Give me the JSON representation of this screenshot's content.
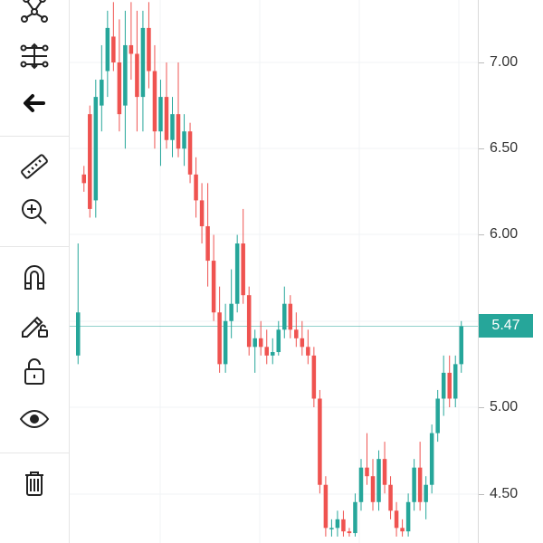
{
  "toolbar": {
    "tools": [
      {
        "id": "pattern",
        "icon": "pattern-icon"
      },
      {
        "id": "measure-settings",
        "icon": "sliders-icon"
      },
      {
        "id": "back",
        "icon": "arrow-left-icon"
      },
      {
        "id": "ruler",
        "icon": "ruler-icon"
      },
      {
        "id": "zoom",
        "icon": "zoom-in-icon"
      },
      {
        "id": "magnet",
        "icon": "magnet-icon"
      },
      {
        "id": "lock-drawing",
        "icon": "pencil-lock-icon"
      },
      {
        "id": "unlock",
        "icon": "unlock-icon"
      },
      {
        "id": "eye",
        "icon": "eye-icon"
      },
      {
        "id": "trash",
        "icon": "trash-icon"
      }
    ]
  },
  "price_axis": {
    "ticks": [
      "7.00",
      "6.50",
      "6.00",
      "5.00",
      "4.50"
    ],
    "current_price": "5.47",
    "current_color": "#26a69a"
  },
  "colors": {
    "up": "#26a69a",
    "down": "#ef5350",
    "grid": "#f0f3f6"
  },
  "chart_data": {
    "type": "candlestick",
    "ylim": [
      4.25,
      7.35
    ],
    "yticks": [
      7.0,
      6.5,
      6.0,
      5.0,
      4.5
    ],
    "last_price": 5.47,
    "candles": [
      [
        5.3,
        5.95,
        5.25,
        5.55
      ],
      [
        6.35,
        6.4,
        6.25,
        6.3
      ],
      [
        6.7,
        6.75,
        6.1,
        6.15
      ],
      [
        6.2,
        6.9,
        6.1,
        6.8
      ],
      [
        6.75,
        7.1,
        6.6,
        6.9
      ],
      [
        6.95,
        7.3,
        6.8,
        7.2
      ],
      [
        7.15,
        7.35,
        6.95,
        7.0
      ],
      [
        7.0,
        7.25,
        6.6,
        6.7
      ],
      [
        6.75,
        7.3,
        6.5,
        7.1
      ],
      [
        7.1,
        7.35,
        6.9,
        7.05
      ],
      [
        7.05,
        7.3,
        6.6,
        6.8
      ],
      [
        6.8,
        7.3,
        6.6,
        7.2
      ],
      [
        7.2,
        7.35,
        6.85,
        6.95
      ],
      [
        6.95,
        7.1,
        6.5,
        6.6
      ],
      [
        6.6,
        6.9,
        6.4,
        6.8
      ],
      [
        6.8,
        7.0,
        6.5,
        6.55
      ],
      [
        6.55,
        6.8,
        6.45,
        6.7
      ],
      [
        6.7,
        7.0,
        6.45,
        6.5
      ],
      [
        6.5,
        6.7,
        6.4,
        6.6
      ],
      [
        6.6,
        6.65,
        6.3,
        6.35
      ],
      [
        6.35,
        6.45,
        6.1,
        6.2
      ],
      [
        6.2,
        6.3,
        5.95,
        6.05
      ],
      [
        6.05,
        6.3,
        5.7,
        5.85
      ],
      [
        5.85,
        6.0,
        5.5,
        5.55
      ],
      [
        5.55,
        5.7,
        5.2,
        5.25
      ],
      [
        5.25,
        5.6,
        5.2,
        5.5
      ],
      [
        5.5,
        5.8,
        5.4,
        5.6
      ],
      [
        5.6,
        6.0,
        5.55,
        5.95
      ],
      [
        5.95,
        6.15,
        5.6,
        5.65
      ],
      [
        5.65,
        5.7,
        5.3,
        5.35
      ],
      [
        5.35,
        5.45,
        5.2,
        5.4
      ],
      [
        5.4,
        5.5,
        5.3,
        5.35
      ],
      [
        5.35,
        5.45,
        5.25,
        5.3
      ],
      [
        5.3,
        5.4,
        5.25,
        5.32
      ],
      [
        5.32,
        5.5,
        5.3,
        5.45
      ],
      [
        5.45,
        5.7,
        5.4,
        5.6
      ],
      [
        5.6,
        5.65,
        5.4,
        5.45
      ],
      [
        5.45,
        5.55,
        5.35,
        5.4
      ],
      [
        5.4,
        5.5,
        5.3,
        5.35
      ],
      [
        5.35,
        5.45,
        5.25,
        5.3
      ],
      [
        5.3,
        5.35,
        5.0,
        5.05
      ],
      [
        5.05,
        5.1,
        4.5,
        4.55
      ],
      [
        4.55,
        4.6,
        4.25,
        4.3
      ],
      [
        4.3,
        4.35,
        4.25,
        4.3
      ],
      [
        4.3,
        4.4,
        4.25,
        4.35
      ],
      [
        4.35,
        4.4,
        4.25,
        4.28
      ],
      [
        4.28,
        4.3,
        4.25,
        4.27
      ],
      [
        4.27,
        4.5,
        4.25,
        4.45
      ],
      [
        4.45,
        4.7,
        4.4,
        4.65
      ],
      [
        4.65,
        4.85,
        4.55,
        4.6
      ],
      [
        4.6,
        4.7,
        4.4,
        4.45
      ],
      [
        4.45,
        4.75,
        4.4,
        4.7
      ],
      [
        4.7,
        4.8,
        4.5,
        4.55
      ],
      [
        4.55,
        4.6,
        4.35,
        4.4
      ],
      [
        4.4,
        4.45,
        4.25,
        4.3
      ],
      [
        4.3,
        4.35,
        4.25,
        4.28
      ],
      [
        4.28,
        4.5,
        4.25,
        4.45
      ],
      [
        4.45,
        4.7,
        4.4,
        4.65
      ],
      [
        4.65,
        4.8,
        4.4,
        4.45
      ],
      [
        4.45,
        4.6,
        4.35,
        4.55
      ],
      [
        4.55,
        4.9,
        4.5,
        4.85
      ],
      [
        4.85,
        5.1,
        4.8,
        5.05
      ],
      [
        5.05,
        5.3,
        4.95,
        5.2
      ],
      [
        5.2,
        5.3,
        5.0,
        5.05
      ],
      [
        5.05,
        5.3,
        5.0,
        5.25
      ],
      [
        5.25,
        5.5,
        5.2,
        5.47
      ]
    ]
  }
}
